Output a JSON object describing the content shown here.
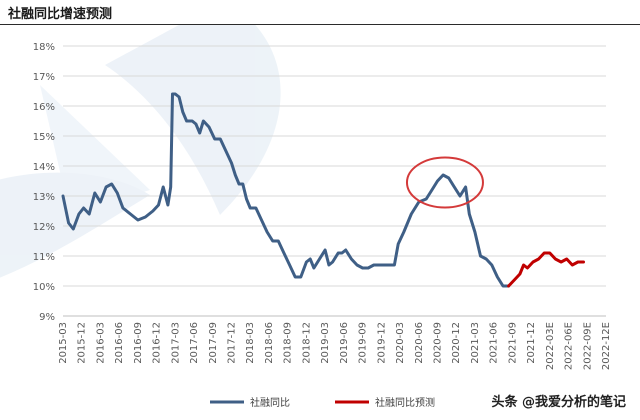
{
  "header": {
    "title": "社融同比增速预测"
  },
  "watermark": {
    "text": "头条 @我爱分析的笔记"
  },
  "colors": {
    "actual": "#3f5f86",
    "forecast": "#c00000",
    "grid": "#d9d9d9",
    "highlight_circle": "#d43a3a",
    "logo_tint": "#dfe9f3"
  },
  "logo_icon": "vic-logo-watermark",
  "chart_data": {
    "type": "line",
    "title": "",
    "xlabel": "",
    "ylabel": "",
    "ylim": [
      9,
      18
    ],
    "yticks": [
      "9%",
      "10%",
      "11%",
      "12%",
      "13%",
      "14%",
      "15%",
      "16%",
      "17%",
      "18%"
    ],
    "xticks": [
      "2015-03",
      "2015-12",
      "2016-03",
      "2016-06",
      "2016-09",
      "2016-12",
      "2017-03",
      "2017-06",
      "2017-09",
      "2017-12",
      "2018-03",
      "2018-06",
      "2018-09",
      "2018-12",
      "2019-03",
      "2019-06",
      "2019-09",
      "2019-12",
      "2020-03",
      "2020-06",
      "2020-09",
      "2020-12",
      "2021-03",
      "2021-06",
      "2021-09",
      "2021-12",
      "2022-03E",
      "2022-06E",
      "2022-09E",
      "2022-12E"
    ],
    "grid": true,
    "legend_position": "bottom",
    "annotation": "circle highlighting the 2020 peak",
    "series": [
      {
        "name": "社融同比",
        "values": [
          [
            0,
            13.0
          ],
          [
            0.3,
            12.1
          ],
          [
            0.55,
            11.9
          ],
          [
            0.85,
            12.4
          ],
          [
            1.1,
            12.6
          ],
          [
            1.4,
            12.4
          ],
          [
            1.7,
            13.1
          ],
          [
            2.0,
            12.8
          ],
          [
            2.3,
            13.3
          ],
          [
            2.6,
            13.4
          ],
          [
            2.9,
            13.1
          ],
          [
            3.2,
            12.6
          ],
          [
            3.6,
            12.4
          ],
          [
            4.0,
            12.2
          ],
          [
            4.4,
            12.3
          ],
          [
            4.8,
            12.5
          ],
          [
            5.1,
            12.7
          ],
          [
            5.35,
            13.3
          ],
          [
            5.6,
            12.7
          ],
          [
            5.75,
            13.3
          ],
          [
            5.85,
            16.4
          ],
          [
            6.0,
            16.4
          ],
          [
            6.2,
            16.3
          ],
          [
            6.4,
            15.8
          ],
          [
            6.6,
            15.5
          ],
          [
            6.9,
            15.5
          ],
          [
            7.1,
            15.4
          ],
          [
            7.3,
            15.1
          ],
          [
            7.5,
            15.5
          ],
          [
            7.8,
            15.3
          ],
          [
            8.1,
            14.9
          ],
          [
            8.4,
            14.9
          ],
          [
            8.7,
            14.5
          ],
          [
            9.0,
            14.1
          ],
          [
            9.2,
            13.7
          ],
          [
            9.4,
            13.4
          ],
          [
            9.6,
            13.4
          ],
          [
            9.8,
            12.9
          ],
          [
            10.0,
            12.6
          ],
          [
            10.3,
            12.6
          ],
          [
            10.6,
            12.2
          ],
          [
            10.9,
            11.8
          ],
          [
            11.2,
            11.5
          ],
          [
            11.5,
            11.5
          ],
          [
            11.8,
            11.1
          ],
          [
            12.1,
            10.7
          ],
          [
            12.4,
            10.3
          ],
          [
            12.7,
            10.3
          ],
          [
            13.0,
            10.8
          ],
          [
            13.2,
            10.9
          ],
          [
            13.4,
            10.6
          ],
          [
            13.7,
            10.9
          ],
          [
            14.0,
            11.2
          ],
          [
            14.2,
            10.7
          ],
          [
            14.4,
            10.8
          ],
          [
            14.7,
            11.1
          ],
          [
            14.9,
            11.1
          ],
          [
            15.1,
            11.2
          ],
          [
            15.4,
            10.9
          ],
          [
            15.7,
            10.7
          ],
          [
            16.0,
            10.6
          ],
          [
            16.3,
            10.6
          ],
          [
            16.6,
            10.7
          ],
          [
            16.9,
            10.7
          ],
          [
            17.2,
            10.7
          ],
          [
            17.5,
            10.7
          ],
          [
            17.7,
            10.7
          ],
          [
            17.9,
            11.4
          ],
          [
            18.2,
            11.8
          ],
          [
            18.6,
            12.4
          ],
          [
            19.0,
            12.8
          ],
          [
            19.4,
            12.9
          ],
          [
            19.7,
            13.2
          ],
          [
            20.0,
            13.5
          ],
          [
            20.3,
            13.7
          ],
          [
            20.6,
            13.6
          ],
          [
            20.9,
            13.3
          ],
          [
            21.2,
            13.0
          ],
          [
            21.5,
            13.3
          ],
          [
            21.7,
            12.4
          ],
          [
            22.0,
            11.8
          ],
          [
            22.3,
            11.0
          ],
          [
            22.6,
            10.9
          ],
          [
            22.9,
            10.7
          ],
          [
            23.2,
            10.3
          ],
          [
            23.5,
            10.0
          ],
          [
            23.8,
            10.0
          ]
        ]
      },
      {
        "name": "社融同比预测",
        "values": [
          [
            23.8,
            10.0
          ],
          [
            24.1,
            10.2
          ],
          [
            24.4,
            10.4
          ],
          [
            24.6,
            10.7
          ],
          [
            24.8,
            10.6
          ],
          [
            25.1,
            10.8
          ],
          [
            25.4,
            10.9
          ],
          [
            25.7,
            11.1
          ],
          [
            26.0,
            11.1
          ],
          [
            26.3,
            10.9
          ],
          [
            26.6,
            10.8
          ],
          [
            26.9,
            10.9
          ],
          [
            27.2,
            10.7
          ],
          [
            27.5,
            10.8
          ],
          [
            27.8,
            10.8
          ]
        ]
      }
    ]
  }
}
